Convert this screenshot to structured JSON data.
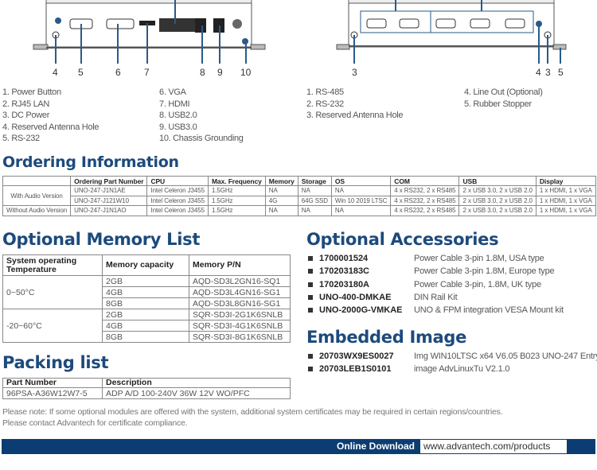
{
  "front_panel": {
    "callout_numbers": [
      "4",
      "5",
      "6",
      "7",
      "8",
      "9",
      "10"
    ],
    "items": [
      "1.  Power Button",
      "2.  RJ45 LAN",
      "3.  DC Power",
      "4.  Reserved Antenna Hole",
      "5.  RS-232",
      "6.  VGA",
      "7.  HDMI",
      "8.  USB2.0",
      "9.  USB3.0",
      "10. Chassis Grounding"
    ]
  },
  "rear_panel": {
    "callout_numbers": [
      "3",
      "4",
      "3",
      "5"
    ],
    "items": [
      "1.  RS-485",
      "2.  RS-232",
      "3.  Reserved Antenna Hole",
      "4.  Line Out (Optional)",
      "5.  Rubber Stopper"
    ]
  },
  "ordering": {
    "title": "Ordering Information",
    "headers": [
      "",
      "Ordering Part Number",
      "CPU",
      "Max. Frequency",
      "Memory",
      "Storage",
      "OS",
      "COM",
      "USB",
      "Display"
    ],
    "groups": [
      "With Audio Version",
      "Without Audio Version"
    ],
    "rows": [
      [
        "UNO-247-J1N1AE",
        "Intel Celeron J3455",
        "1.5GHz",
        "NA",
        "NA",
        "NA",
        "4 x RS232, 2 x RS485",
        "2 x USB 3.0, 2 x USB 2.0",
        "1 x HDMI, 1 x VGA"
      ],
      [
        "UNO-247-J121W10",
        "Intel Celeron J3455",
        "1.5GHz",
        "4G",
        "64G SSD",
        "Win 10 2019 LTSC",
        "4 x RS232, 2 x RS485",
        "2 x USB 3.0, 2 x USB 2.0",
        "1 x HDMI, 1 x VGA"
      ],
      [
        "UNO-247-J1N1AO",
        "Intel Celeron J3455",
        "1.5GHz",
        "NA",
        "NA",
        "NA",
        "4 x RS232, 2 x RS485",
        "2 x USB 3.0, 2 x USB 2.0",
        "1 x HDMI, 1 x VGA"
      ]
    ]
  },
  "memory": {
    "title": "Optional Memory List",
    "headers": [
      "System operating Temperature",
      "Memory capacity",
      "Memory P/N"
    ],
    "temps": [
      "0~50°C",
      "-20~60°C"
    ],
    "rows": [
      [
        "2GB",
        "AQD-SD3L2GN16-SQ1"
      ],
      [
        "4GB",
        "AQD-SD3L4GN16-SG1"
      ],
      [
        "8GB",
        "AQD-SD3L8GN16-SG1"
      ],
      [
        "2GB",
        "SQR-SD3I-2G1K6SNLB"
      ],
      [
        "4GB",
        "SQR-SD3I-4G1K6SNLB"
      ],
      [
        "8GB",
        "SQR-SD3I-8G1K6SNLB"
      ]
    ]
  },
  "packing": {
    "title": "Packing list",
    "headers": [
      "Part Number",
      "Description"
    ],
    "rows": [
      [
        "96PSA-A36W12W7-5",
        "ADP A/D 100-240V 36W 12V WO/PFC"
      ]
    ]
  },
  "accessories": {
    "title": "Optional Accessories",
    "items": [
      {
        "code": "1700001524",
        "desc": "Power Cable 3-pin 1.8M, USA  type"
      },
      {
        "code": "170203183C",
        "desc": "Power Cable 3-pin 1.8M, Europe type"
      },
      {
        "code": "170203180A",
        "desc": "Power Cable 3-pin, 1.8M, UK type"
      },
      {
        "code": "UNO-400-DMKAE",
        "desc": "DIN Rail Kit"
      },
      {
        "code": "UNO-2000G-VMKAE",
        "desc": "UNO & FPM integration VESA Mount kit"
      }
    ]
  },
  "embedded": {
    "title": "Embedded Image",
    "items": [
      {
        "code": "20703WX9ES0027",
        "desc": "Img WIN10LTSC x64 V6.05 B023 UNO-247 Entry"
      },
      {
        "code": "20703LEB1S0101",
        "desc": "image AdvLinuxTu V2.1.0"
      }
    ]
  },
  "note": [
    "Please note: If some optional modules are offered with the system, additional system certificates may be required in certain regions/countries.",
    "Please contact Advantech for certificate compliance."
  ],
  "footer": {
    "label": "Online Download",
    "url": "www.advantech.com/products"
  },
  "colors": {
    "heading": "#1d4a7c",
    "footer_bar": "#0c3d72",
    "callout_line": "#2a5a8a"
  }
}
